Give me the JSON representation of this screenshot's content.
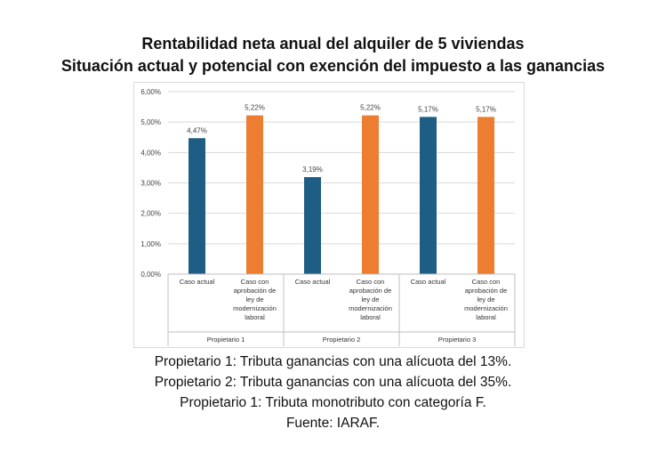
{
  "title_line1": "Rentabilidad neta anual del alquiler de 5 viviendas",
  "title_line2": "Situación actual y potencial con exención del impuesto a las ganancias",
  "notes": [
    "Propietario 1: Tributa ganancias con una alícuota del 13%.",
    "Propietario 2: Tributa ganancias con una alícuota del 35%.",
    "Propietario 1: Tributa monotributo con categoría F.",
    "Fuente: IARAF."
  ],
  "chart_data": {
    "type": "bar",
    "ylim": [
      0,
      6
    ],
    "yticks": [
      "0,00%",
      "1,00%",
      "2,00%",
      "3,00%",
      "4,00%",
      "5,00%",
      "6,00%"
    ],
    "groups": [
      "Propietario 1",
      "Propietario 2",
      "Propietario 3"
    ],
    "categories": [
      [
        "Caso actual"
      ],
      [
        "Caso con",
        "aprobación de",
        "ley de",
        "modernización",
        "laboral"
      ],
      [
        "Caso actual"
      ],
      [
        "Caso con",
        "aprobación de",
        "ley de",
        "modernización",
        "laboral"
      ],
      [
        "Caso actual"
      ],
      [
        "Caso con",
        "aprobación de",
        "ley de",
        "modernización",
        "laboral"
      ]
    ],
    "values": [
      4.47,
      5.22,
      3.19,
      5.22,
      5.17,
      5.17
    ],
    "labels": [
      "4,47%",
      "5,22%",
      "3,19%",
      "5,22%",
      "5,17%",
      "5,17%"
    ],
    "colors": [
      "#1f5e84",
      "#ed7d31",
      "#1f5e84",
      "#ed7d31",
      "#1f5e84",
      "#ed7d31"
    ],
    "grid": true
  }
}
